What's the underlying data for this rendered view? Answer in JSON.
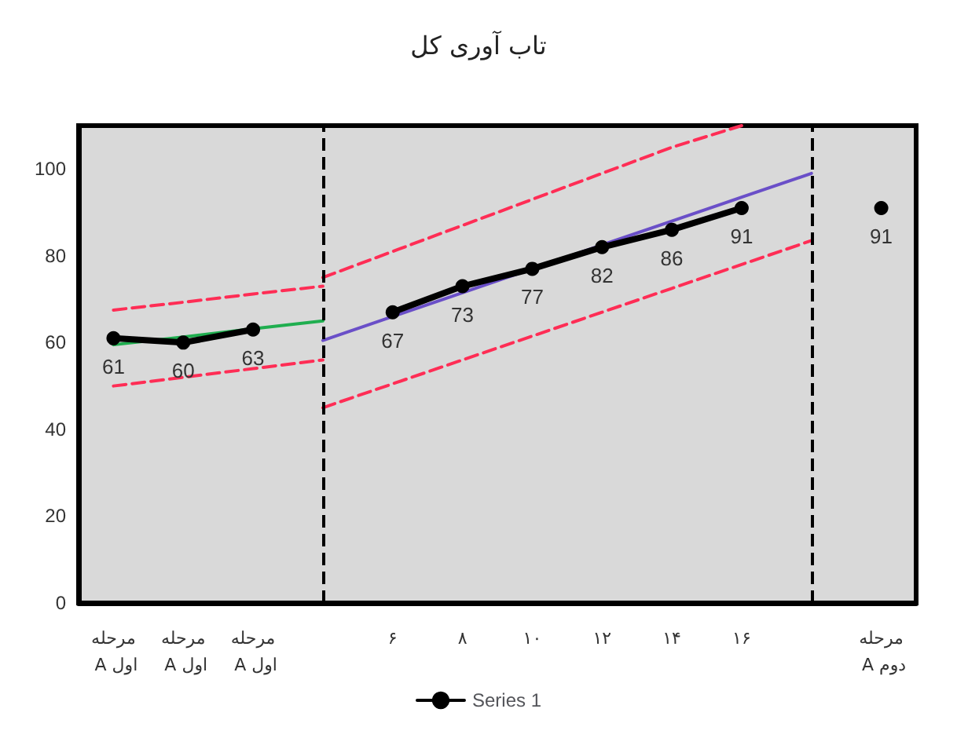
{
  "chart_data": {
    "type": "line",
    "title": "تاب آوری کل",
    "categories": [
      "مرحله A اول",
      "مرحله A اول",
      "مرحله A اول",
      null,
      "۶",
      "۸",
      "۱۰",
      "۱۲",
      "۱۴",
      "۱۶",
      null,
      "مرحله A دوم"
    ],
    "ylim": [
      0,
      110
    ],
    "yticks": [
      0,
      20,
      40,
      60,
      80,
      100
    ],
    "series": [
      {
        "name": "Series 1",
        "color": "#000000",
        "marker": "circle",
        "values": [
          61,
          60,
          63,
          null,
          67,
          73,
          77,
          82,
          86,
          91,
          null,
          91
        ],
        "value_labels": [
          "61",
          "60",
          "63",
          null,
          "67",
          "73",
          "77",
          "82",
          "86",
          "91",
          null,
          "91"
        ]
      },
      {
        "color": "#1fae4f",
        "marker": "none",
        "values": [
          59.5,
          61.3,
          63.2,
          65,
          null,
          null,
          null,
          null,
          null,
          null,
          null,
          null
        ]
      },
      {
        "color": "#6a4fc8",
        "marker": "none",
        "values": [
          null,
          null,
          null,
          60.5,
          66,
          71.5,
          77,
          82.5,
          88,
          93.5,
          99,
          null
        ]
      },
      {
        "color": "#ff2d55",
        "marker": "none",
        "line_style": "dashed",
        "values": [
          67.5,
          69.3,
          71.2,
          73,
          null,
          null,
          null,
          null,
          null,
          null,
          null,
          null
        ]
      },
      {
        "color": "#ff2d55",
        "marker": "none",
        "line_style": "dashed",
        "values": [
          50,
          52,
          54,
          56,
          null,
          null,
          null,
          null,
          null,
          null,
          null,
          null
        ]
      },
      {
        "color": "#ff2d55",
        "marker": "none",
        "line_style": "dashed",
        "values": [
          null,
          null,
          null,
          75,
          81,
          87,
          93,
          99,
          105,
          110,
          null,
          null
        ]
      },
      {
        "color": "#ff2d55",
        "marker": "none",
        "line_style": "dashed",
        "values": [
          null,
          null,
          null,
          45,
          50.5,
          56,
          61.5,
          67,
          72.5,
          78,
          83.5,
          null
        ]
      }
    ],
    "legend": "bottom"
  }
}
